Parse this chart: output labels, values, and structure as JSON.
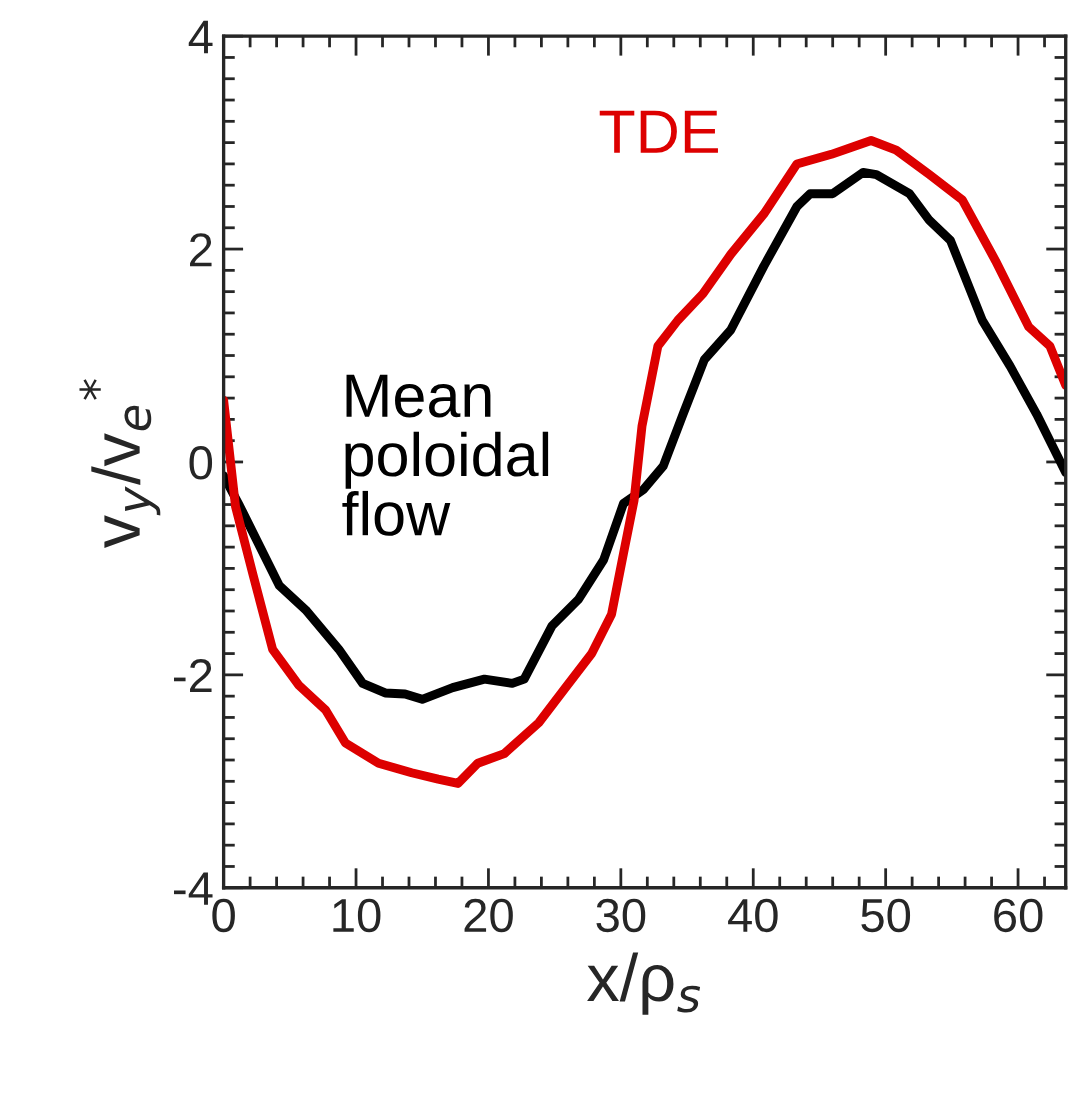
{
  "chart_data": {
    "type": "line",
    "xlabel": "x/ρ$_{s}$",
    "ylabel": "v$_{y}$/v$_{e}$$^{*}$",
    "xlim": [
      0,
      63.6
    ],
    "ylim": [
      -4,
      4
    ],
    "xticks": [
      0,
      10,
      20,
      30,
      40,
      50,
      60
    ],
    "yticks": [
      -4,
      -2,
      0,
      2,
      4
    ],
    "grid": false,
    "legend": false,
    "line_style": "solid",
    "marker": "none",
    "series": [
      {
        "name": "Mean\npoloidal\nflow",
        "color": "#000000",
        "x": [
          0,
          1.2,
          4.2,
          6.2,
          8.7,
          10.5,
          12.2,
          13.7,
          15,
          17.3,
          19.7,
          21.8,
          22.7,
          24.8,
          26.8,
          28.7,
          30.2,
          31.7,
          33.2,
          34.7,
          36.3,
          38.3,
          40.8,
          43.3,
          44.3,
          46,
          48.3,
          49.3,
          51.8,
          53.3,
          54.9,
          57.3,
          59.4,
          61.4,
          63.6
        ],
        "values": [
          -0.13,
          -0.41,
          -1.16,
          -1.39,
          -1.76,
          -2.08,
          -2.17,
          -2.18,
          -2.23,
          -2.12,
          -2.04,
          -2.08,
          -2.04,
          -1.54,
          -1.29,
          -0.92,
          -0.39,
          -0.26,
          -0.04,
          0.45,
          0.96,
          1.24,
          1.84,
          2.4,
          2.52,
          2.52,
          2.72,
          2.7,
          2.52,
          2.27,
          2.08,
          1.33,
          0.9,
          0.45,
          -0.1
        ]
      },
      {
        "name": "TDE",
        "color": "#dd0000",
        "x": [
          0,
          0.9,
          2.2,
          3.7,
          5.7,
          7.7,
          9.2,
          11.7,
          14.2,
          16.2,
          17.7,
          19.2,
          21.2,
          23.8,
          25.7,
          27.8,
          29.3,
          30.2,
          31,
          31.6,
          32.8,
          34.3,
          36.2,
          38.3,
          40.8,
          43.3,
          45.9,
          48.9,
          50.8,
          53.3,
          55.8,
          58.3,
          60.8,
          62.4,
          63.6
        ],
        "values": [
          0.58,
          -0.42,
          -1.05,
          -1.76,
          -2.1,
          -2.33,
          -2.64,
          -2.83,
          -2.92,
          -2.98,
          -3.02,
          -2.83,
          -2.74,
          -2.45,
          -2.14,
          -1.8,
          -1.43,
          -0.86,
          -0.36,
          0.34,
          1.09,
          1.33,
          1.58,
          1.95,
          2.33,
          2.8,
          2.89,
          3.02,
          2.93,
          2.7,
          2.46,
          1.89,
          1.27,
          1.09,
          0.72
        ]
      }
    ]
  }
}
